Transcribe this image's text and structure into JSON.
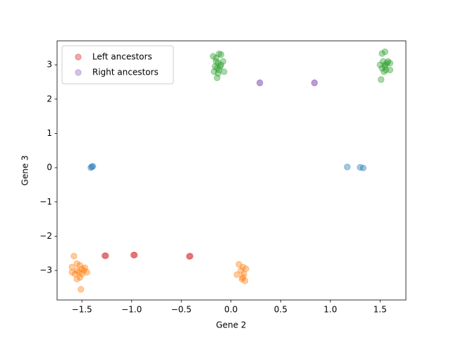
{
  "chart_data": {
    "type": "scatter",
    "xlabel": "Gene 2",
    "ylabel": "Gene 3",
    "xlim": [
      -1.75,
      1.76
    ],
    "ylim": [
      -3.86,
      3.7
    ],
    "xticks": [
      {
        "value": -1.5,
        "label": "−1.5"
      },
      {
        "value": -1.0,
        "label": "−1.0"
      },
      {
        "value": -0.5,
        "label": "−0.5"
      },
      {
        "value": 0,
        "label": "0.0"
      },
      0.5,
      {
        "value": 1.0,
        "label": "1.0"
      },
      1.5
    ],
    "yticks": [
      {
        "value": -3,
        "label": "−3"
      },
      {
        "value": -2,
        "label": "−2"
      },
      {
        "value": -1,
        "label": "−1"
      },
      0,
      1,
      2,
      3
    ],
    "alpha": 0.4,
    "legend": "upper left",
    "series": [
      {
        "color": "#1f77b4",
        "x": [
          -1.4,
          -1.39,
          -1.41,
          1.17,
          1.3,
          1.33
        ],
        "values": [
          0.03,
          0.04,
          0.0,
          0.02,
          0.01,
          -0.01
        ]
      },
      {
        "color": "#ff7f0e",
        "x": [
          -1.58,
          -1.55,
          -1.52,
          -1.6,
          -1.5,
          -1.55,
          -1.48,
          -1.53,
          -1.57,
          -1.5,
          -1.6,
          -1.52,
          -1.55,
          -1.47,
          -1.51,
          -1.45,
          0.08,
          0.12,
          0.15,
          0.1,
          0.06,
          0.13,
          0.12,
          0.14,
          0.11
        ],
        "values": [
          -2.58,
          -2.8,
          -2.85,
          -2.9,
          -2.95,
          -3.0,
          -3.0,
          -3.05,
          -3.1,
          -3.1,
          -3.05,
          -3.2,
          -3.25,
          -2.92,
          -3.55,
          -3.05,
          -2.82,
          -2.9,
          -2.95,
          -3.0,
          -3.12,
          -3.1,
          -3.2,
          -3.3,
          -3.25
        ]
      },
      {
        "color": "#2ca02c",
        "x": [
          -0.18,
          -0.12,
          -0.1,
          -0.15,
          -0.13,
          -0.16,
          -0.1,
          -0.14,
          -0.12,
          -0.17,
          -0.07,
          -0.13,
          -0.14,
          -0.08,
          -0.11,
          -0.15,
          1.52,
          1.55,
          1.53,
          1.57,
          1.55,
          1.6,
          1.52,
          1.56,
          1.6,
          1.54,
          1.58,
          1.5,
          1.51,
          1.55
        ],
        "values": [
          3.25,
          3.32,
          3.3,
          3.1,
          3.05,
          2.95,
          3.0,
          2.9,
          2.85,
          2.8,
          2.8,
          2.75,
          2.62,
          3.1,
          2.95,
          3.2,
          3.33,
          3.38,
          3.1,
          3.05,
          2.95,
          3.05,
          2.9,
          2.85,
          2.85,
          2.8,
          3.1,
          3.0,
          2.57,
          3.0
        ]
      },
      {
        "name": "Left ancestors",
        "color": "#d62728",
        "x": [
          -1.27,
          -1.26,
          -0.97,
          -0.98,
          -0.41,
          -0.42
        ],
        "values": [
          -2.57,
          -2.57,
          -2.55,
          -2.55,
          -2.58,
          -2.59
        ]
      },
      {
        "name": "Right ancestors",
        "color": "#9467bd",
        "x": [
          0.29,
          0.29,
          0.84,
          0.84
        ],
        "values": [
          2.48,
          2.47,
          2.48,
          2.47
        ]
      }
    ]
  }
}
